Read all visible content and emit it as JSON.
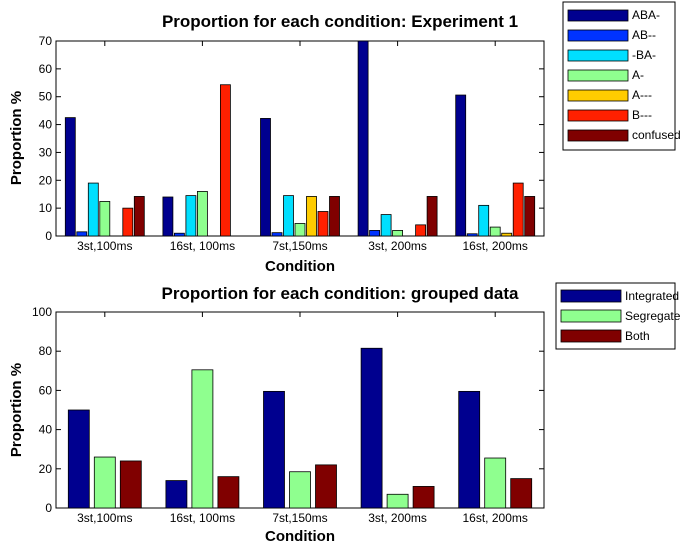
{
  "chart_data": [
    {
      "type": "bar",
      "title": "Proportion for each condition: Experiment 1",
      "xlabel": "Condition",
      "ylabel": "Proportion %",
      "ylim": [
        0,
        70
      ],
      "yticks": [
        0,
        10,
        20,
        30,
        40,
        50,
        60,
        70
      ],
      "legend_position": "top-right",
      "categories": [
        "3st,100ms",
        "16st, 100ms",
        "7st,150ms",
        "3st, 200ms",
        "16st, 200ms"
      ],
      "series": [
        {
          "name": "ABA-",
          "color": "#00008f",
          "values": [
            42.5,
            14,
            42.2,
            70,
            50.6
          ]
        },
        {
          "name": "AB--",
          "color": "#0033ff",
          "values": [
            1.5,
            1,
            1.2,
            2,
            0.8
          ]
        },
        {
          "name": "-BA-",
          "color": "#00dfff",
          "values": [
            19,
            14.5,
            14.5,
            7.7,
            11
          ]
        },
        {
          "name": "A-",
          "color": "#8fff8f",
          "values": [
            12.4,
            16,
            4.5,
            2,
            3.2
          ]
        },
        {
          "name": "A---",
          "color": "#ffcc00",
          "values": [
            0,
            0,
            14.2,
            0,
            1
          ]
        },
        {
          "name": "B---",
          "color": "#ff2000",
          "values": [
            10,
            54.3,
            8.8,
            4,
            19
          ]
        },
        {
          "name": "confused",
          "color": "#800000",
          "values": [
            14.2,
            0,
            14.2,
            14.2,
            14.2
          ]
        }
      ]
    },
    {
      "type": "bar",
      "title": "Proportion for each condition: grouped data",
      "xlabel": "Condition",
      "ylabel": "Proportion %",
      "ylim": [
        0,
        100
      ],
      "yticks": [
        0,
        20,
        40,
        60,
        80,
        100
      ],
      "legend_position": "top-right",
      "categories": [
        "3st,100ms",
        "16st, 100ms",
        "7st,150ms",
        "3st, 200ms",
        "16st, 200ms"
      ],
      "series": [
        {
          "name": "Integrated",
          "color": "#00008f",
          "values": [
            50,
            14,
            59.5,
            81.5,
            59.5
          ]
        },
        {
          "name": "Segregated",
          "color": "#8fff8f",
          "values": [
            26,
            70.5,
            18.5,
            7,
            25.5
          ]
        },
        {
          "name": "Both",
          "color": "#800000",
          "values": [
            24,
            16,
            22,
            11,
            15
          ]
        }
      ]
    }
  ]
}
